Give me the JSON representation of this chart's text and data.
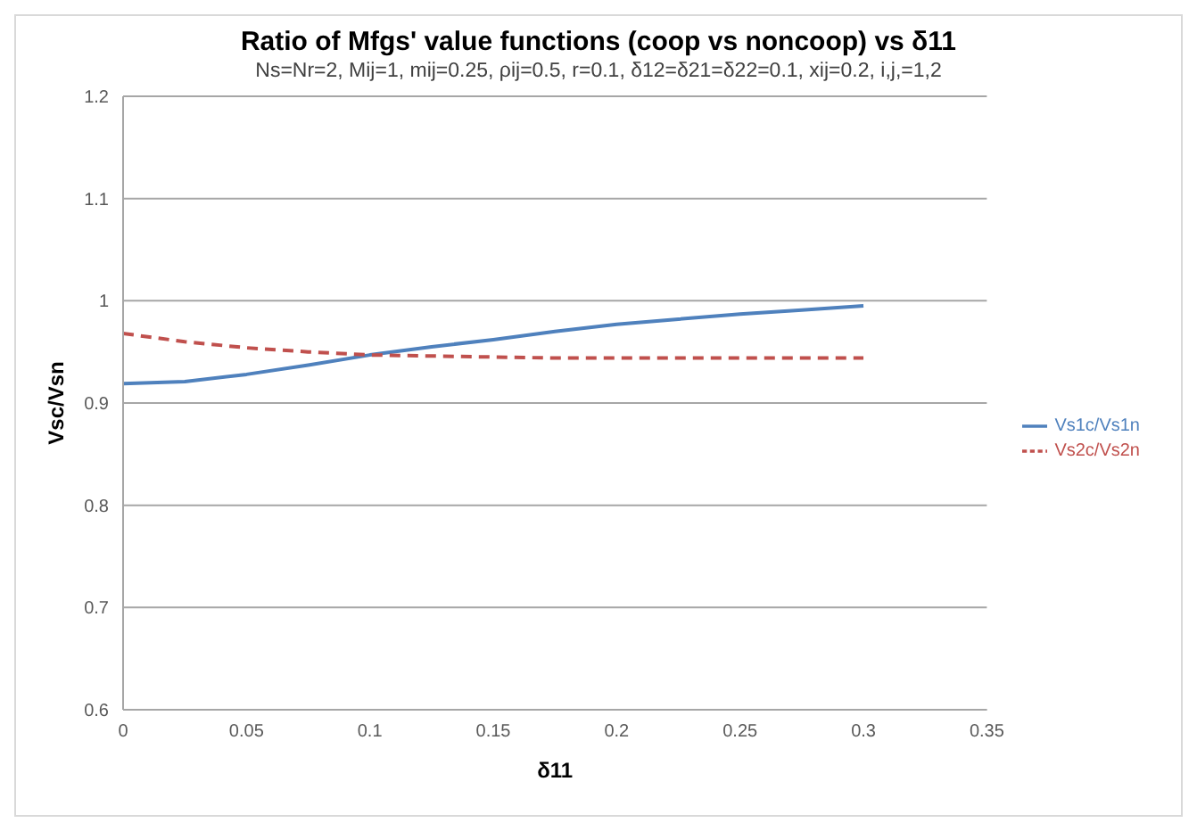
{
  "chart_data": {
    "type": "line",
    "title": "Ratio of Mfgs' value functions (coop vs noncoop) vs δ11",
    "subtitle": "Ns=Nr=2, Mij=1, mij=0.25, ρij=0.5, r=0.1, δ12=δ21=δ22=0.1,  xij=0.2,  i,j,=1,2",
    "xlabel": "δ11",
    "ylabel": "Vsc/Vsn",
    "x": [
      0,
      0.025,
      0.05,
      0.075,
      0.1,
      0.125,
      0.15,
      0.175,
      0.2,
      0.225,
      0.25,
      0.275,
      0.3
    ],
    "series": [
      {
        "name": "Vs1c/Vs1n",
        "color": "#4f81bd",
        "line_style": "solid",
        "values": [
          0.919,
          0.921,
          0.928,
          0.937,
          0.947,
          0.955,
          0.962,
          0.97,
          0.977,
          0.982,
          0.987,
          0.991,
          0.995
        ]
      },
      {
        "name": "Vs2c/Vs2n",
        "color": "#c0504d",
        "line_style": "dashed",
        "values": [
          0.968,
          0.96,
          0.954,
          0.95,
          0.947,
          0.946,
          0.945,
          0.944,
          0.944,
          0.944,
          0.944,
          0.944,
          0.944
        ]
      }
    ],
    "xlim": [
      0,
      0.35
    ],
    "xticks": [
      0,
      0.05,
      0.1,
      0.15,
      0.2,
      0.25,
      0.3,
      0.35
    ],
    "ylim": [
      0.6,
      1.2
    ],
    "yticks": [
      0.6,
      0.7,
      0.8,
      0.9,
      1,
      1.1,
      1.2
    ],
    "grid": "y",
    "legend": "right",
    "marker": "none"
  }
}
